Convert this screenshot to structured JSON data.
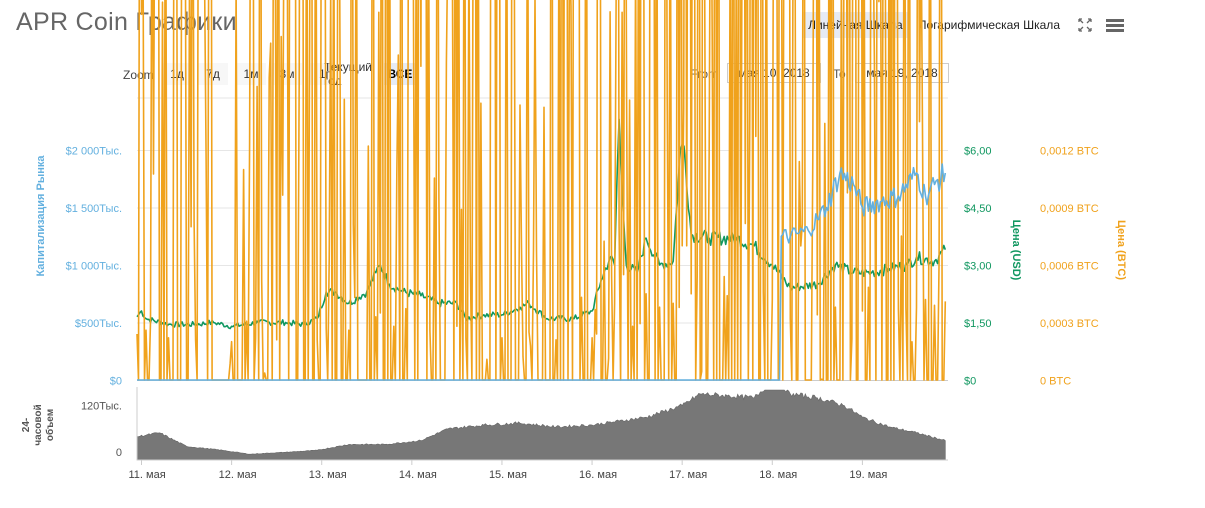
{
  "header": {
    "title": "APR Coin Графики",
    "linear_scale": "Линейная Шкала",
    "log_scale": "Логарифмическая Шкала",
    "fullscreen_icon": "expand-arrows-icon",
    "menu_icon": "hamburger-icon"
  },
  "zoom": {
    "label": "Zoom",
    "buttons": [
      "1д",
      "7д",
      "1м",
      "3м",
      "1г",
      "Текущий год",
      "ВСЕ"
    ],
    "active": "ВСЕ"
  },
  "range": {
    "from_label": "From",
    "from_value": "мая 10, 2018",
    "to_label": "To",
    "to_value": "мая 19, 2018"
  },
  "colors": {
    "market_cap": "#63b0df",
    "price_usd": "#109760",
    "price_btc": "#f0a21c",
    "volume": "#777777"
  },
  "chart_data": {
    "type": "line",
    "x_tick_labels": [
      "11. мая",
      "12. мая",
      "13. мая",
      "14. мая",
      "15. мая",
      "16. мая",
      "17. мая",
      "18. мая",
      "19. мая"
    ],
    "axes": {
      "market_cap": {
        "label": "Капитализация Рынка",
        "ticks": [
          "$0",
          "$500Тыс.",
          "$1 000Тыс.",
          "$1 500Тыс.",
          "$2 000Тыс."
        ],
        "range": [
          0,
          2000000
        ]
      },
      "price_usd": {
        "label": "Цена (USD)",
        "ticks": [
          "$0",
          "$1,50",
          "$3,00",
          "$4,50",
          "$6,00"
        ],
        "range": [
          0,
          6
        ]
      },
      "price_btc": {
        "label": "Цена (BTC)",
        "ticks": [
          "0 BTC",
          "0,0003 BTC",
          "0,0006 BTC",
          "0,0009 BTC",
          "0,0012 BTC"
        ],
        "range": [
          0,
          0.0012
        ]
      },
      "volume": {
        "label": "24-часовой объем",
        "ticks": [
          "0",
          "120Тыс."
        ],
        "range": [
          0,
          180000
        ]
      }
    },
    "x_unit": "day (11 = 11. мая)",
    "series": [
      {
        "name": "Цена (USD)",
        "axis": "price_usd",
        "points": [
          [
            10.95,
            1.65
          ],
          [
            11.0,
            1.8
          ],
          [
            11.05,
            1.6
          ],
          [
            11.3,
            1.45
          ],
          [
            11.6,
            1.45
          ],
          [
            11.8,
            1.5
          ],
          [
            12.0,
            1.4
          ],
          [
            12.3,
            1.5
          ],
          [
            12.6,
            1.5
          ],
          [
            12.8,
            1.45
          ],
          [
            12.95,
            1.6
          ],
          [
            13.05,
            2.3
          ],
          [
            13.15,
            2.3
          ],
          [
            13.3,
            2.0
          ],
          [
            13.5,
            2.3
          ],
          [
            13.6,
            2.8
          ],
          [
            13.65,
            3.0
          ],
          [
            13.75,
            2.5
          ],
          [
            13.9,
            2.3
          ],
          [
            14.1,
            2.2
          ],
          [
            14.3,
            2.0
          ],
          [
            14.5,
            2.0
          ],
          [
            14.6,
            1.6
          ],
          [
            14.8,
            1.7
          ],
          [
            15.0,
            1.7
          ],
          [
            15.2,
            1.9
          ],
          [
            15.3,
            2.0
          ],
          [
            15.5,
            1.6
          ],
          [
            15.8,
            1.6
          ],
          [
            16.0,
            1.8
          ],
          [
            16.1,
            2.6
          ],
          [
            16.2,
            3.2
          ],
          [
            16.25,
            3.0
          ],
          [
            16.28,
            5.5
          ],
          [
            16.3,
            6.8
          ],
          [
            16.33,
            5.0
          ],
          [
            16.38,
            3.0
          ],
          [
            16.5,
            2.8
          ],
          [
            16.6,
            3.7
          ],
          [
            16.75,
            3.0
          ],
          [
            16.9,
            3.1
          ],
          [
            16.98,
            6.0
          ],
          [
            17.02,
            6.1
          ],
          [
            17.1,
            3.8
          ],
          [
            17.3,
            3.7
          ],
          [
            17.6,
            3.7
          ],
          [
            17.8,
            3.5
          ],
          [
            18.0,
            3.0
          ],
          [
            18.2,
            2.4
          ],
          [
            18.5,
            2.5
          ],
          [
            18.7,
            3.0
          ],
          [
            18.9,
            2.8
          ],
          [
            19.1,
            2.8
          ],
          [
            19.3,
            2.9
          ],
          [
            19.5,
            3.0
          ],
          [
            19.6,
            3.2
          ],
          [
            19.8,
            3.1
          ],
          [
            19.92,
            3.4
          ]
        ]
      },
      {
        "name": "Цена (BTC)",
        "axis": "price_btc",
        "points": [
          [
            10.95,
            0.00024
          ],
          [
            11.05,
            0.00026
          ],
          [
            11.3,
            0.00022
          ],
          [
            11.6,
            0.00021
          ],
          [
            12.0,
            0.0002
          ],
          [
            12.5,
            0.00021
          ],
          [
            12.95,
            0.00021
          ],
          [
            13.05,
            0.00027
          ],
          [
            13.3,
            0.00026
          ],
          [
            13.6,
            0.00033
          ],
          [
            13.65,
            0.00035
          ],
          [
            13.8,
            0.00028
          ],
          [
            14.2,
            0.00026
          ],
          [
            14.6,
            0.00022
          ],
          [
            15.0,
            0.00022
          ],
          [
            15.3,
            0.00025
          ],
          [
            15.6,
            0.00021
          ],
          [
            16.0,
            0.00022
          ],
          [
            16.05,
            0.00024
          ],
          [
            16.25,
            0.0004
          ],
          [
            16.3,
            0.0008
          ],
          [
            16.35,
            0.00055
          ],
          [
            16.45,
            0.00028
          ],
          [
            16.6,
            0.00045
          ],
          [
            16.75,
            0.00038
          ],
          [
            16.9,
            0.0004
          ],
          [
            17.0,
            0.0007
          ],
          [
            17.05,
            0.0007
          ],
          [
            17.1,
            0.00045
          ],
          [
            17.5,
            0.00044
          ],
          [
            17.9,
            0.00046
          ],
          [
            18.0,
            0.00042
          ],
          [
            18.2,
            0.00032
          ],
          [
            18.5,
            0.00034
          ],
          [
            18.7,
            0.00038
          ],
          [
            19.0,
            0.00036
          ],
          [
            19.4,
            0.00037
          ],
          [
            19.6,
            0.00038
          ],
          [
            19.7,
            0.00042
          ],
          [
            19.8,
            0.00039
          ],
          [
            19.92,
            0.00041
          ]
        ]
      },
      {
        "name": "Капитализация Рынка",
        "axis": "market_cap",
        "points": [
          [
            10.95,
            0
          ],
          [
            18.08,
            0
          ],
          [
            18.1,
            1250000
          ],
          [
            18.2,
            1250000
          ],
          [
            18.4,
            1300000
          ],
          [
            18.5,
            1400000
          ],
          [
            18.6,
            1500000
          ],
          [
            18.75,
            1800000
          ],
          [
            18.9,
            1700000
          ],
          [
            19.0,
            1500000
          ],
          [
            19.2,
            1550000
          ],
          [
            19.4,
            1600000
          ],
          [
            19.6,
            1800000
          ],
          [
            19.7,
            1600000
          ],
          [
            19.8,
            1700000
          ],
          [
            19.92,
            1800000
          ]
        ]
      },
      {
        "name": "24-часовой объем",
        "axis": "volume",
        "points": [
          [
            10.95,
            60000
          ],
          [
            11.2,
            70000
          ],
          [
            11.5,
            35000
          ],
          [
            11.9,
            25000
          ],
          [
            12.2,
            15000
          ],
          [
            12.6,
            20000
          ],
          [
            12.95,
            25000
          ],
          [
            13.3,
            40000
          ],
          [
            13.7,
            40000
          ],
          [
            14.1,
            50000
          ],
          [
            14.4,
            80000
          ],
          [
            14.8,
            90000
          ],
          [
            15.2,
            95000
          ],
          [
            15.6,
            85000
          ],
          [
            16.0,
            90000
          ],
          [
            16.3,
            100000
          ],
          [
            16.6,
            110000
          ],
          [
            17.0,
            140000
          ],
          [
            17.2,
            170000
          ],
          [
            17.5,
            165000
          ],
          [
            17.8,
            160000
          ],
          [
            18.0,
            205000
          ],
          [
            18.2,
            170000
          ],
          [
            18.5,
            160000
          ],
          [
            18.8,
            140000
          ],
          [
            19.0,
            110000
          ],
          [
            19.3,
            85000
          ],
          [
            19.6,
            70000
          ],
          [
            19.92,
            50000
          ]
        ]
      }
    ]
  }
}
